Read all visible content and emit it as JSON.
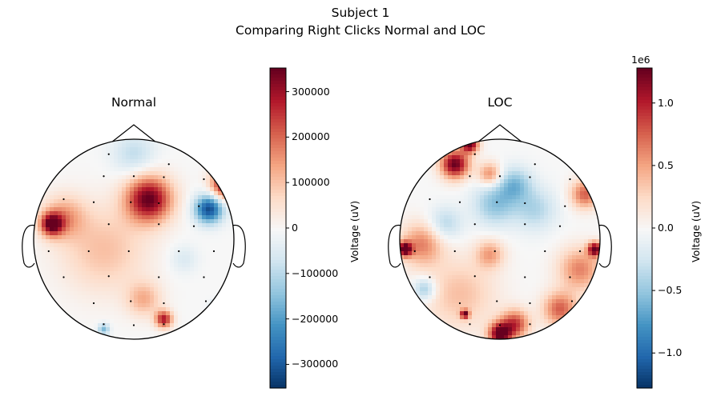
{
  "figure": {
    "suptitle_line1": "Subject 1",
    "suptitle_line2": "Comparing Right Clicks Normal and LOC",
    "cmap": [
      "#053061",
      "#2166ac",
      "#4393c3",
      "#92c5de",
      "#d1e5f0",
      "#f7f7f7",
      "#fddbc7",
      "#f4a582",
      "#d6604d",
      "#b2182b",
      "#67001f"
    ]
  },
  "panels": [
    {
      "title": "Normal",
      "colorbar": {
        "label": "Voltage (uV)",
        "multiplier": "",
        "ticks": [
          "300000",
          "200000",
          "100000",
          "0",
          "−100000",
          "−200000",
          "−300000"
        ],
        "tick_values": [
          300000,
          200000,
          100000,
          0,
          -100000,
          -200000,
          -300000
        ],
        "vmin": -352000,
        "vmax": 352000
      },
      "sources": [
        {
          "u": 0.15,
          "v": -0.4,
          "w": 0.16,
          "a": 1.0
        },
        {
          "u": 0.75,
          "v": -0.3,
          "w": 0.1,
          "a": -0.9
        },
        {
          "u": 0.92,
          "v": -0.55,
          "w": 0.1,
          "a": 1.0
        },
        {
          "u": -0.82,
          "v": -0.15,
          "w": 0.08,
          "a": 0.9
        },
        {
          "u": -0.7,
          "v": -0.22,
          "w": 0.15,
          "a": 0.4
        },
        {
          "u": -0.3,
          "v": 0.1,
          "w": 0.3,
          "a": 0.3
        },
        {
          "u": 0.1,
          "v": 0.6,
          "w": 0.12,
          "a": 0.35
        },
        {
          "u": 0.3,
          "v": 0.8,
          "w": 0.06,
          "a": 0.8
        },
        {
          "u": -0.3,
          "v": 0.9,
          "w": 0.04,
          "a": -0.45
        },
        {
          "u": 0.85,
          "v": 0.7,
          "w": 0.05,
          "a": -0.8
        },
        {
          "u": 0.5,
          "v": 0.2,
          "w": 0.1,
          "a": -0.15
        },
        {
          "u": 0.0,
          "v": -0.85,
          "w": 0.15,
          "a": -0.25
        }
      ],
      "sensors": [
        [
          -0.25,
          -0.85
        ],
        [
          0.35,
          -0.75
        ],
        [
          -0.3,
          -0.63
        ],
        [
          0.0,
          -0.63
        ],
        [
          0.3,
          -0.62
        ],
        [
          0.7,
          -0.6
        ],
        [
          -0.7,
          -0.4
        ],
        [
          -0.4,
          -0.37
        ],
        [
          -0.03,
          -0.37
        ],
        [
          0.25,
          -0.36
        ],
        [
          0.65,
          -0.33
        ],
        [
          -0.25,
          -0.15
        ],
        [
          0.25,
          -0.15
        ],
        [
          0.6,
          -0.13
        ],
        [
          -0.85,
          0.12
        ],
        [
          -0.45,
          0.12
        ],
        [
          -0.05,
          0.12
        ],
        [
          0.45,
          0.12
        ],
        [
          0.8,
          0.12
        ],
        [
          -0.7,
          0.38
        ],
        [
          -0.25,
          0.37
        ],
        [
          0.25,
          0.38
        ],
        [
          0.7,
          0.38
        ],
        [
          -0.4,
          0.64
        ],
        [
          -0.03,
          0.62
        ],
        [
          0.3,
          0.64
        ],
        [
          0.72,
          0.62
        ],
        [
          -0.3,
          0.85
        ],
        [
          0.0,
          0.86
        ],
        [
          0.3,
          0.85
        ]
      ]
    },
    {
      "title": "LOC",
      "colorbar": {
        "label": "Voltage (uV)",
        "multiplier": "1e6",
        "ticks": [
          "1.0",
          "0.5",
          "0.0",
          "−0.5",
          "−1.0"
        ],
        "tick_values": [
          1.0,
          0.5,
          0.0,
          -0.5,
          -1.0
        ],
        "vmin": -1.28,
        "vmax": 1.28
      },
      "sources": [
        {
          "u": -0.45,
          "v": -0.75,
          "w": 0.1,
          "a": 1.0
        },
        {
          "u": -0.3,
          "v": -0.95,
          "w": 0.06,
          "a": 1.0
        },
        {
          "u": -0.1,
          "v": -0.65,
          "w": 0.08,
          "a": 0.5
        },
        {
          "u": 0.15,
          "v": -0.55,
          "w": 0.12,
          "a": -0.4
        },
        {
          "u": -0.05,
          "v": -0.35,
          "w": 0.15,
          "a": -0.4
        },
        {
          "u": 0.35,
          "v": -0.3,
          "w": 0.15,
          "a": -0.3
        },
        {
          "u": -0.55,
          "v": -0.15,
          "w": 0.12,
          "a": -0.3
        },
        {
          "u": 0.85,
          "v": -0.45,
          "w": 0.1,
          "a": 0.6
        },
        {
          "u": -0.95,
          "v": 0.1,
          "w": 0.05,
          "a": 1.0
        },
        {
          "u": -0.78,
          "v": 0.05,
          "w": 0.15,
          "a": 0.5
        },
        {
          "u": 0.95,
          "v": 0.1,
          "w": 0.05,
          "a": 1.0
        },
        {
          "u": 0.8,
          "v": 0.3,
          "w": 0.15,
          "a": 0.5
        },
        {
          "u": -0.1,
          "v": 0.15,
          "w": 0.1,
          "a": 0.4
        },
        {
          "u": -0.4,
          "v": 0.55,
          "w": 0.25,
          "a": 0.3
        },
        {
          "u": -0.35,
          "v": 0.75,
          "w": 0.03,
          "a": 0.9
        },
        {
          "u": 0.0,
          "v": 0.95,
          "w": 0.08,
          "a": 1.0
        },
        {
          "u": 0.15,
          "v": 0.85,
          "w": 0.1,
          "a": 0.7
        },
        {
          "u": 0.6,
          "v": 0.7,
          "w": 0.12,
          "a": 0.6
        },
        {
          "u": -0.75,
          "v": 0.5,
          "w": 0.08,
          "a": -0.4
        }
      ],
      "sensors": [
        [
          -0.25,
          -0.85
        ],
        [
          0.35,
          -0.75
        ],
        [
          -0.3,
          -0.63
        ],
        [
          0.0,
          -0.63
        ],
        [
          0.3,
          -0.62
        ],
        [
          0.7,
          -0.6
        ],
        [
          -0.7,
          -0.4
        ],
        [
          -0.4,
          -0.37
        ],
        [
          -0.03,
          -0.37
        ],
        [
          0.25,
          -0.36
        ],
        [
          0.65,
          -0.33
        ],
        [
          -0.25,
          -0.15
        ],
        [
          0.25,
          -0.15
        ],
        [
          0.6,
          -0.13
        ],
        [
          -0.85,
          0.12
        ],
        [
          -0.45,
          0.12
        ],
        [
          -0.05,
          0.12
        ],
        [
          0.45,
          0.12
        ],
        [
          0.8,
          0.12
        ],
        [
          -0.7,
          0.38
        ],
        [
          -0.25,
          0.37
        ],
        [
          0.25,
          0.38
        ],
        [
          0.7,
          0.38
        ],
        [
          -0.4,
          0.64
        ],
        [
          -0.03,
          0.62
        ],
        [
          0.3,
          0.64
        ],
        [
          0.72,
          0.62
        ],
        [
          -0.3,
          0.85
        ],
        [
          0.0,
          0.86
        ],
        [
          0.3,
          0.85
        ]
      ]
    }
  ]
}
